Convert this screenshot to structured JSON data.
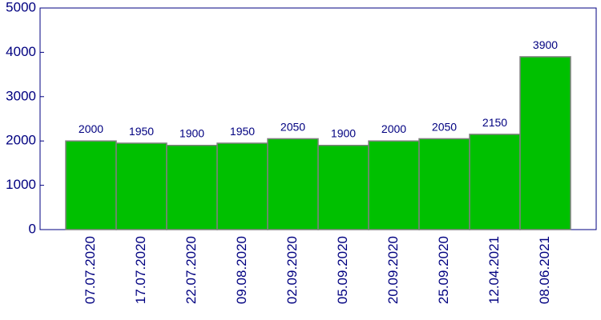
{
  "chart_data": {
    "type": "bar",
    "categories": [
      "07.07.2020",
      "17.07.2020",
      "22.07.2020",
      "09.08.2020",
      "02.09.2020",
      "05.09.2020",
      "20.09.2020",
      "25.09.2020",
      "12.04.2021",
      "08.06.2021"
    ],
    "values": [
      2000,
      1950,
      1900,
      1950,
      2050,
      1900,
      2000,
      2050,
      2150,
      3900
    ],
    "color": "#00c000",
    "ylim": [
      0,
      5000
    ],
    "yticks": [
      0,
      1000,
      2000,
      3000,
      4000,
      5000
    ],
    "grid": false
  }
}
